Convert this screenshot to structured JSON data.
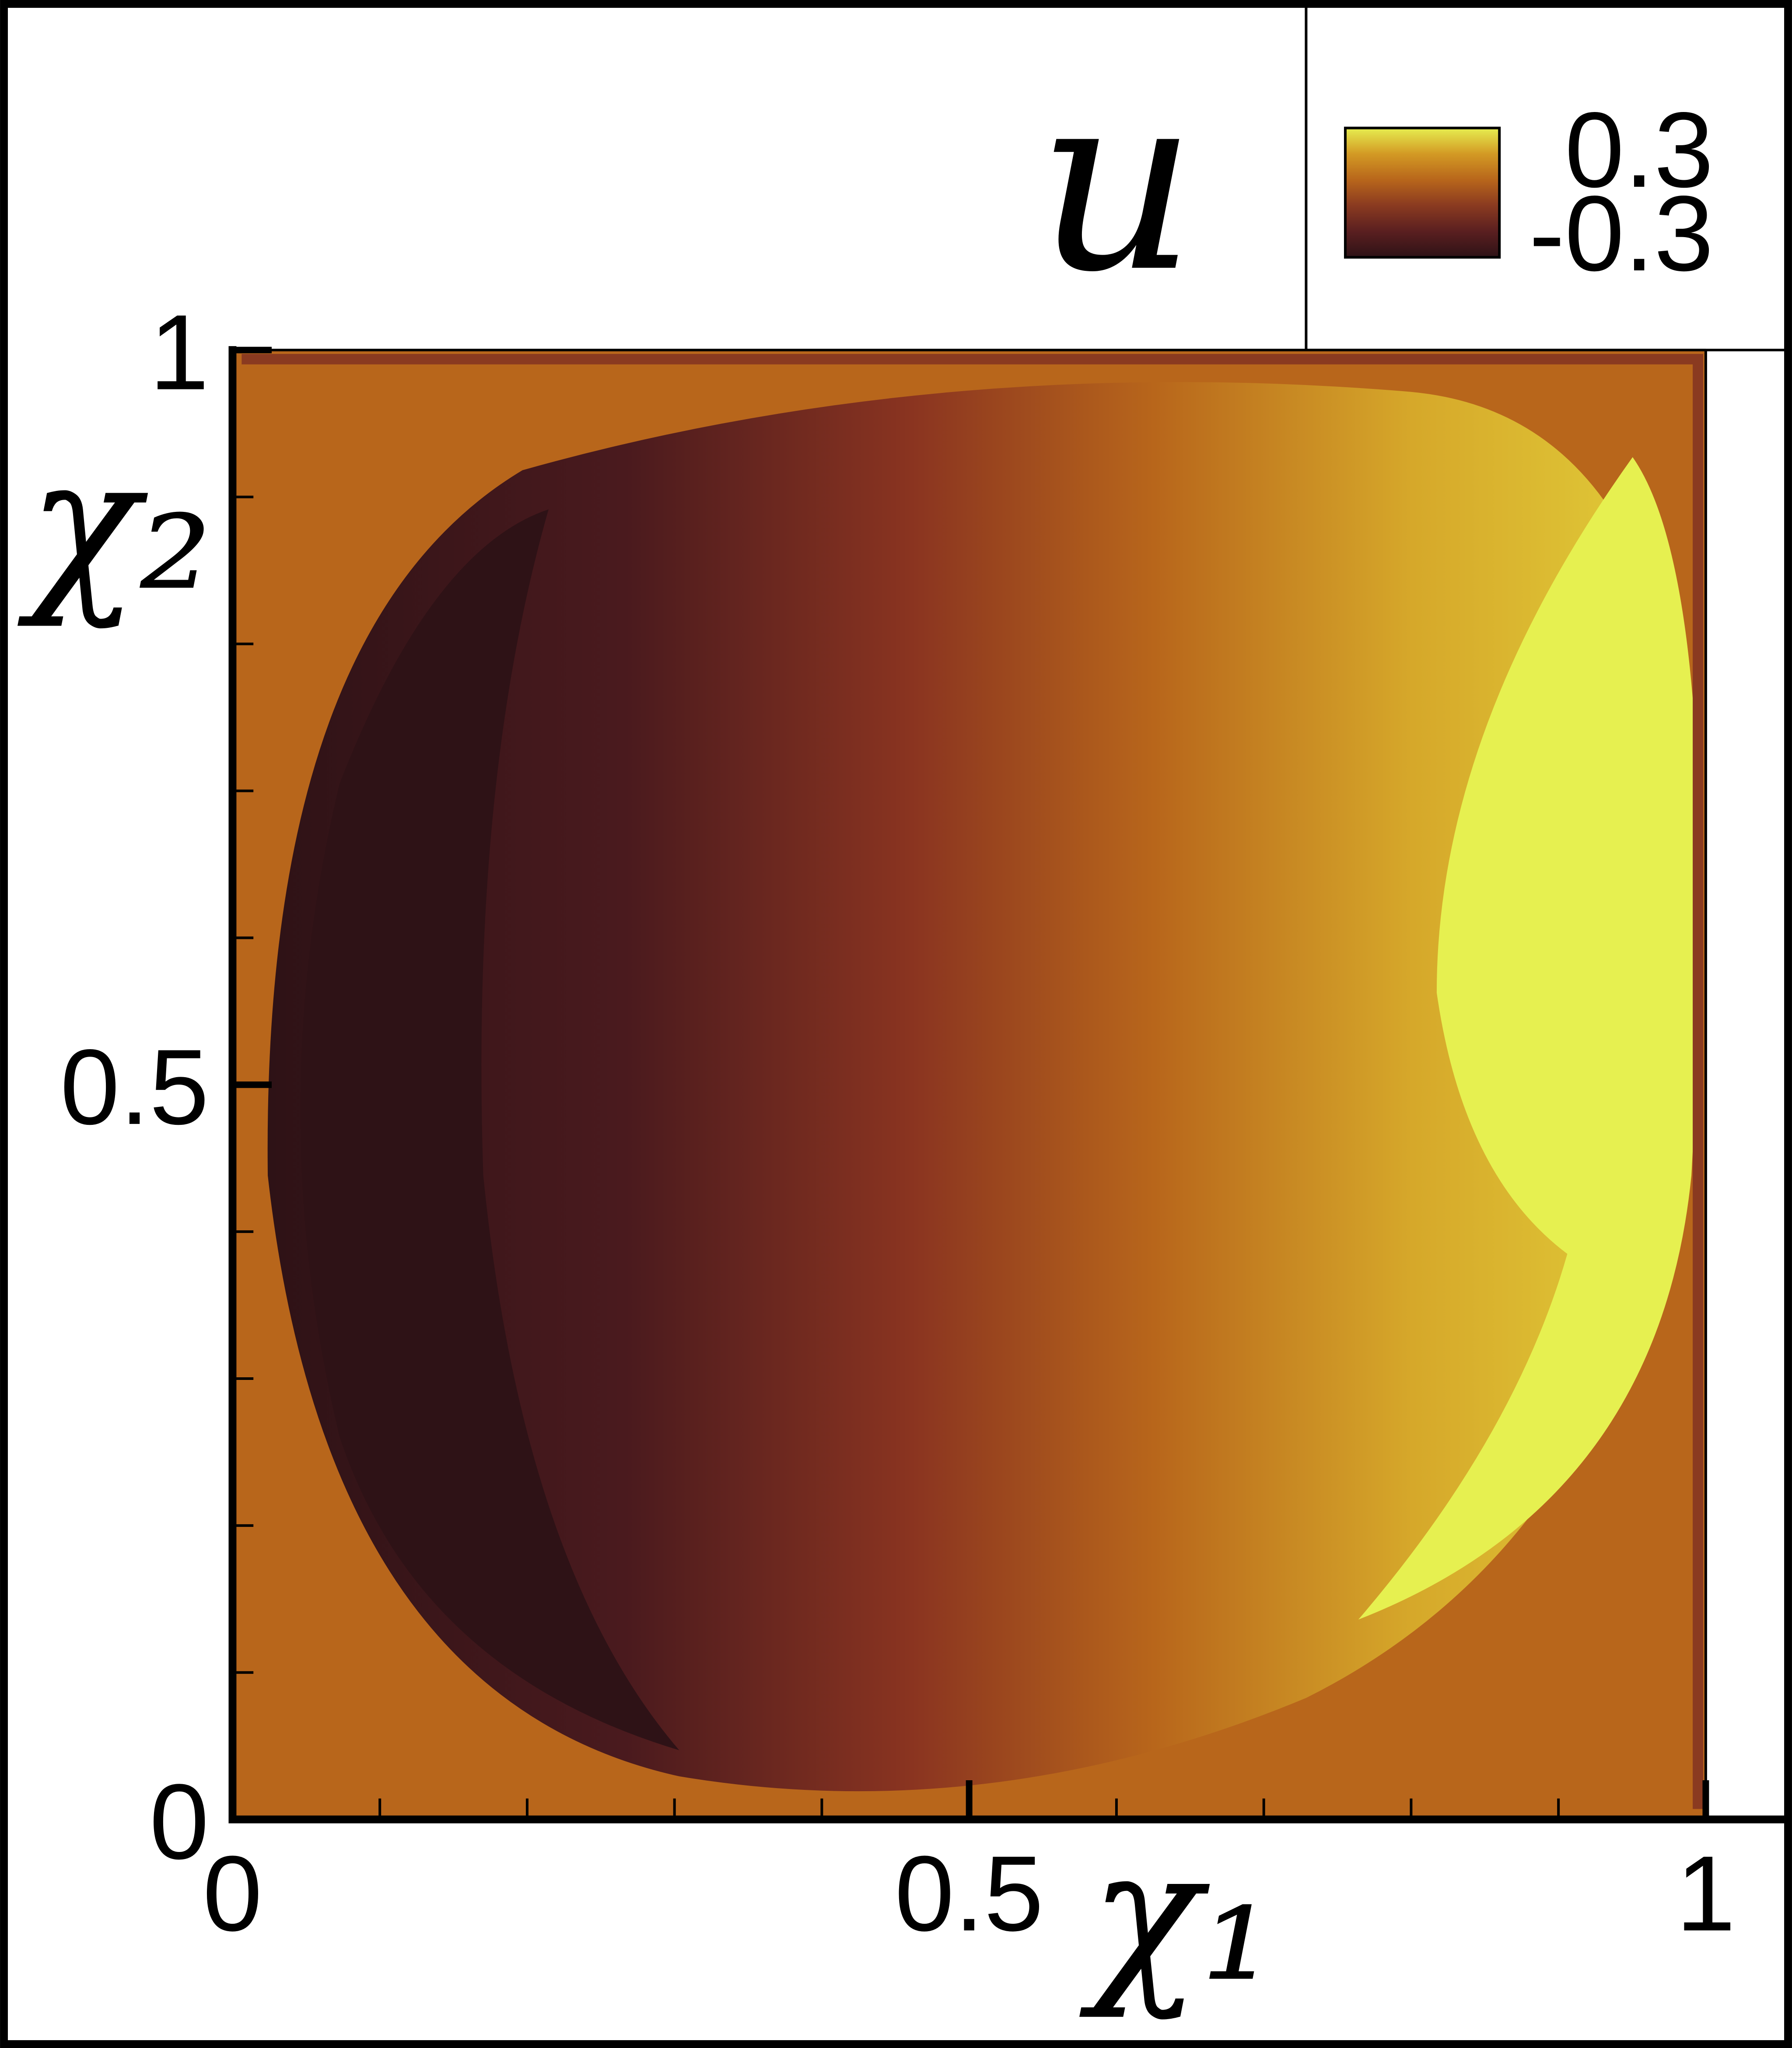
{
  "chart_data": {
    "type": "contour",
    "title": "u",
    "xlabel": "χ₁",
    "ylabel": "χ₂",
    "xlim": [
      0,
      1
    ],
    "ylim": [
      0,
      1
    ],
    "xticks": [
      0,
      0.5,
      1
    ],
    "yticks": [
      0,
      0.5,
      1
    ],
    "xminorticks": [
      0.1,
      0.2,
      0.3,
      0.4,
      0.6,
      0.7,
      0.8,
      0.9
    ],
    "yminorticks": [
      0.1,
      0.2,
      0.3,
      0.4,
      0.6,
      0.7,
      0.8,
      0.9
    ],
    "colorbar": {
      "range": [
        -0.3,
        0.3
      ],
      "ticks": [
        0.3,
        -0.3
      ],
      "colors": [
        "#2e1216",
        "#5a1f20",
        "#8a3a20",
        "#b8661b",
        "#d39a24",
        "#e6ee50"
      ]
    }
  }
}
